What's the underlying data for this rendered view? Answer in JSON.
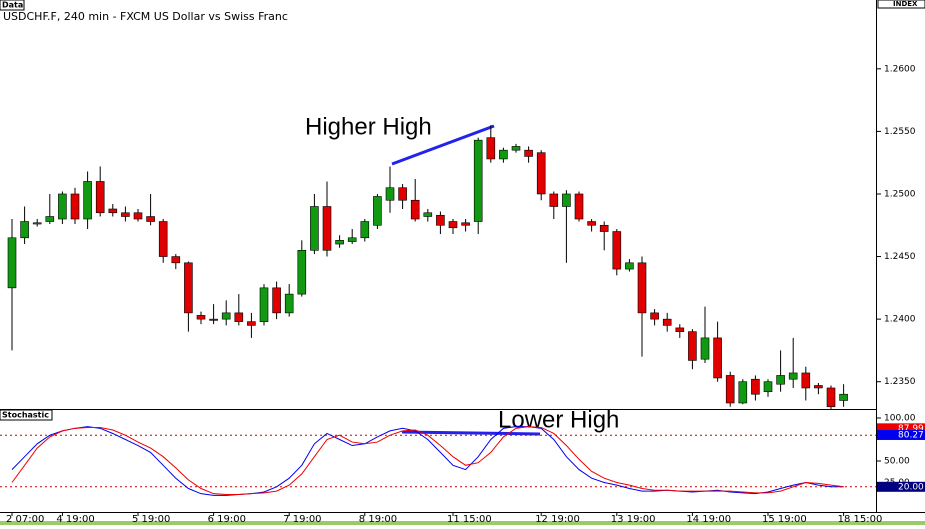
{
  "chart_data": [
    {
      "type": "candlestick",
      "badge": "Data",
      "title": "USDCHF.F, 240 min - FXCM US Dollar vs Swiss Franc",
      "axis_label": "INDEX",
      "annotation": "Higher High",
      "up_color": "#119911",
      "down_color": "#e00000",
      "categories": [
        "2 07:00",
        null,
        null,
        null,
        "4 19:00",
        null,
        null,
        null,
        null,
        null,
        "5 19:00",
        null,
        null,
        null,
        null,
        null,
        "6 19:00",
        null,
        null,
        null,
        null,
        null,
        "7 19:00",
        null,
        null,
        null,
        null,
        null,
        "8 19:00",
        null,
        null,
        null,
        null,
        null,
        null,
        "11 15:00",
        null,
        null,
        null,
        null,
        null,
        null,
        "12 19:00",
        null,
        null,
        null,
        null,
        null,
        "13 19:00",
        null,
        null,
        null,
        null,
        null,
        "14 19:00",
        null,
        null,
        null,
        null,
        null,
        "15 19:00",
        null,
        null,
        null,
        null,
        null,
        "18 15:00"
      ],
      "open": [
        1.2425,
        1.2465,
        1.2476,
        1.2478,
        1.248,
        1.25,
        1.248,
        1.251,
        1.2488,
        1.2485,
        1.2485,
        1.2482,
        1.2478,
        1.245,
        1.2445,
        1.2403,
        1.24,
        1.24,
        1.2405,
        1.2398,
        1.2398,
        1.2425,
        1.2405,
        1.242,
        1.2455,
        1.249,
        1.246,
        1.2462,
        1.2465,
        1.2475,
        1.2495,
        1.2505,
        1.2495,
        1.2482,
        1.2483,
        1.2478,
        1.2477,
        1.2478,
        1.2545,
        1.2528,
        1.2535,
        1.2535,
        1.2533,
        1.25,
        1.249,
        1.25,
        1.2478,
        1.2475,
        1.247,
        1.244,
        1.2445,
        1.2405,
        1.24,
        1.2393,
        1.239,
        1.2368,
        1.2385,
        1.2355,
        1.2333,
        1.2352,
        1.2342,
        1.2348,
        1.2352,
        1.2357,
        1.2347,
        1.2345,
        1.2335
      ],
      "high": [
        1.248,
        1.249,
        1.248,
        1.25,
        1.2502,
        1.2505,
        1.2518,
        1.2522,
        1.2492,
        1.249,
        1.2488,
        1.25,
        1.248,
        1.2452,
        1.2446,
        1.2406,
        1.2412,
        1.2415,
        1.242,
        1.2405,
        1.2428,
        1.243,
        1.2428,
        1.2463,
        1.25,
        1.251,
        1.2467,
        1.2472,
        1.248,
        1.25,
        1.2522,
        1.2508,
        1.2512,
        1.2488,
        1.2486,
        1.248,
        1.248,
        1.2545,
        1.2555,
        1.2537,
        1.254,
        1.2538,
        1.2535,
        1.2502,
        1.2503,
        1.2502,
        1.248,
        1.2478,
        1.2472,
        1.2448,
        1.245,
        1.2408,
        1.2405,
        1.2396,
        1.2392,
        1.241,
        1.2398,
        1.2358,
        1.2352,
        1.2355,
        1.2352,
        1.2375,
        1.2385,
        1.2362,
        1.2349,
        1.2347,
        1.2348
      ],
      "low": [
        1.2375,
        1.246,
        1.2474,
        1.2476,
        1.2476,
        1.2476,
        1.2472,
        1.2482,
        1.2482,
        1.2478,
        1.2478,
        1.2475,
        1.2445,
        1.244,
        1.239,
        1.2396,
        1.2396,
        1.2395,
        1.2395,
        1.2385,
        1.2395,
        1.24,
        1.2402,
        1.2418,
        1.2452,
        1.245,
        1.2457,
        1.246,
        1.2462,
        1.2472,
        1.2485,
        1.2488,
        1.2478,
        1.2478,
        1.2468,
        1.2468,
        1.247,
        1.2468,
        1.2525,
        1.2525,
        1.2533,
        1.2525,
        1.2495,
        1.248,
        1.2445,
        1.2478,
        1.247,
        1.2455,
        1.2435,
        1.2438,
        1.237,
        1.2395,
        1.239,
        1.2385,
        1.236,
        1.2365,
        1.235,
        1.233,
        1.2332,
        1.2335,
        1.2338,
        1.2342,
        1.2345,
        1.2335,
        1.234,
        1.2328,
        1.233
      ],
      "close": [
        1.2465,
        1.2478,
        1.2477,
        1.2482,
        1.25,
        1.248,
        1.251,
        1.2485,
        1.2485,
        1.2482,
        1.248,
        1.2478,
        1.245,
        1.2445,
        1.2405,
        1.24,
        1.2399,
        1.2405,
        1.2398,
        1.2395,
        1.2425,
        1.2405,
        1.242,
        1.2455,
        1.249,
        1.2455,
        1.2463,
        1.2465,
        1.2478,
        1.2498,
        1.2505,
        1.2495,
        1.248,
        1.2485,
        1.2475,
        1.2473,
        1.2475,
        1.2543,
        1.2528,
        1.2535,
        1.2538,
        1.253,
        1.25,
        1.249,
        1.25,
        1.248,
        1.2475,
        1.247,
        1.244,
        1.2445,
        1.2405,
        1.24,
        1.2395,
        1.239,
        1.2367,
        1.2385,
        1.2353,
        1.2333,
        1.235,
        1.234,
        1.235,
        1.2355,
        1.2357,
        1.2345,
        1.2345,
        1.233,
        1.234
      ],
      "ylim": [
        1.2325,
        1.2655
      ],
      "yticks": [
        {
          "value": 1.26,
          "label": "1.2600"
        },
        {
          "value": 1.255,
          "label": "1.2550"
        },
        {
          "value": 1.25,
          "label": "1.2500"
        },
        {
          "value": 1.245,
          "label": "1.2450"
        },
        {
          "value": 1.24,
          "label": "1.2400"
        },
        {
          "value": 1.235,
          "label": "1.2350"
        }
      ]
    },
    {
      "type": "line",
      "title": "Stochastic",
      "annotation": "Lower High",
      "series": [
        {
          "color": "#0000ee",
          "values": [
            40,
            55,
            70,
            80,
            85,
            88,
            90,
            88,
            82,
            75,
            68,
            60,
            45,
            30,
            18,
            12,
            10,
            10,
            11,
            12,
            14,
            20,
            30,
            45,
            70,
            82,
            75,
            68,
            70,
            78,
            85,
            88,
            85,
            75,
            60,
            45,
            40,
            55,
            75,
            88,
            90,
            90,
            88,
            75,
            55,
            40,
            30,
            25,
            22,
            18,
            15,
            15,
            16,
            15,
            14,
            15,
            16,
            14,
            13,
            12,
            14,
            18,
            22,
            25,
            22,
            20,
            20
          ]
        },
        {
          "color": "#ee0000",
          "values": [
            25,
            45,
            65,
            78,
            85,
            88,
            89,
            89,
            86,
            80,
            72,
            65,
            55,
            42,
            28,
            18,
            12,
            11,
            11,
            12,
            13,
            15,
            22,
            35,
            55,
            75,
            80,
            72,
            70,
            72,
            80,
            85,
            86,
            80,
            68,
            55,
            45,
            48,
            60,
            78,
            88,
            90,
            89,
            82,
            68,
            52,
            38,
            30,
            25,
            22,
            18,
            16,
            16,
            15,
            15,
            15,
            15,
            15,
            14,
            13,
            13,
            15,
            20,
            25,
            24,
            22,
            20
          ]
        }
      ],
      "levels": [
        80,
        20
      ],
      "markers": [
        {
          "value": 87.99,
          "color": "#ee0000"
        },
        {
          "value": 80.27,
          "color": "#0000ee"
        },
        {
          "value": 20,
          "label": "20.00",
          "color": "#000080"
        }
      ],
      "ylim": [
        -9.3,
        109.3
      ],
      "yticks": [
        {
          "value": 100,
          "label": "100.00"
        },
        {
          "value": 50,
          "label": "50.00"
        },
        {
          "value": 25,
          "label": "25.00"
        }
      ]
    }
  ]
}
